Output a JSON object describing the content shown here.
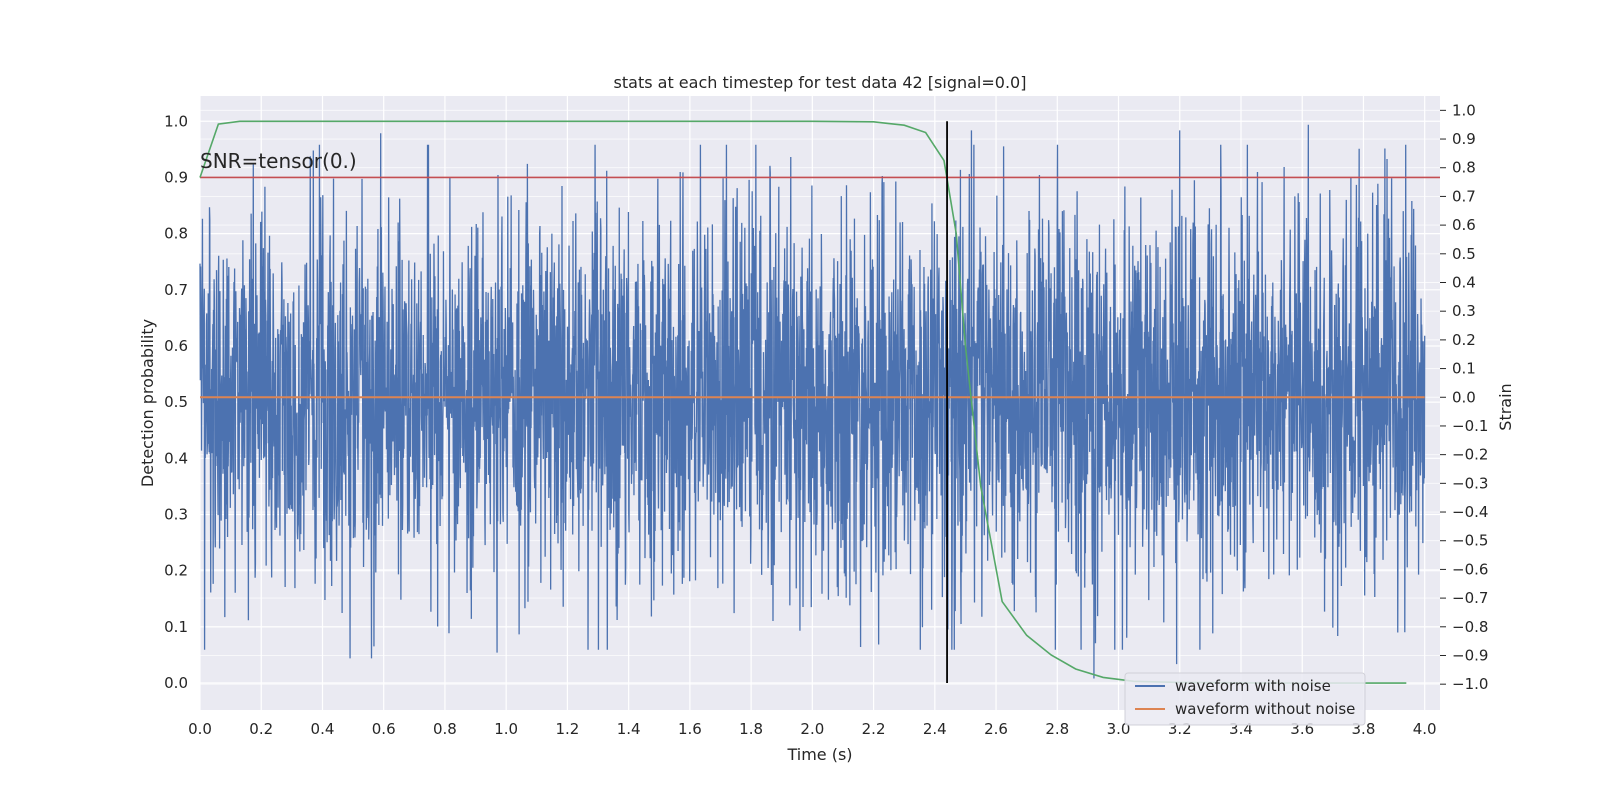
{
  "chart_data": {
    "type": "line",
    "title": "stats at each timestep for test data 42 [signal=0.0]",
    "xlabel": "Time (s)",
    "ylabel": "Detection probability",
    "y2label": "Strain",
    "xlim": [
      0.0,
      4.05
    ],
    "ylim": [
      -0.048,
      1.045
    ],
    "y2lim": [
      -1.09,
      1.05
    ],
    "xticks": [
      "0.0",
      "0.2",
      "0.4",
      "0.6",
      "0.8",
      "1.0",
      "1.2",
      "1.4",
      "1.6",
      "1.8",
      "2.0",
      "2.2",
      "2.4",
      "2.6",
      "2.8",
      "3.0",
      "3.2",
      "3.4",
      "3.6",
      "3.8",
      "4.0"
    ],
    "yticks": [
      "0.0",
      "0.1",
      "0.2",
      "0.3",
      "0.4",
      "0.5",
      "0.6",
      "0.7",
      "0.8",
      "0.9",
      "1.0"
    ],
    "y2ticks": [
      "−1.0",
      "−0.9",
      "−0.8",
      "−0.7",
      "−0.6",
      "−0.5",
      "−0.4",
      "−0.3",
      "−0.2",
      "−0.1",
      "0.0",
      "0.1",
      "0.2",
      "0.3",
      "0.4",
      "0.5",
      "0.6",
      "0.7",
      "0.8",
      "0.9",
      "1.0"
    ],
    "grid": true,
    "legend_placement": "lower-right",
    "annotation": "SNR=tensor(0.)",
    "threshold": 0.9,
    "marker_time": 2.44,
    "colors": {
      "background": "#eaeaf2",
      "noise": "#4c72b0",
      "clean": "#dd8452",
      "probability": "#55a868",
      "threshold": "#c44e52",
      "marker": "#000000"
    },
    "series": [
      {
        "name": "waveform with noise",
        "axis": "right",
        "t_start": 0.0,
        "t_end": 4.0,
        "samples": 4000,
        "distribution": "random noise, std ~0.33, peaks",
        "peaks": [
          {
            "t": 0.59,
            "v": 0.92
          },
          {
            "t": 0.36,
            "v": 0.84
          },
          {
            "t": 2.52,
            "v": 0.93
          },
          {
            "t": 3.2,
            "v": 0.93
          },
          {
            "t": 3.62,
            "v": 0.95
          },
          {
            "t": 0.49,
            "v": -0.91
          },
          {
            "t": 0.56,
            "v": -0.91
          },
          {
            "t": 0.97,
            "v": -0.89
          },
          {
            "t": 2.92,
            "v": -0.98
          },
          {
            "t": 3.19,
            "v": -0.93
          }
        ]
      },
      {
        "name": "waveform without noise",
        "axis": "right",
        "x": [
          0.0,
          4.0
        ],
        "y": [
          0.0,
          0.0
        ]
      },
      {
        "name": "",
        "axis": "left",
        "x": [
          0.0,
          0.06,
          0.13,
          0.3,
          1.0,
          1.5,
          2.0,
          2.2,
          2.3,
          2.37,
          2.43,
          2.47,
          2.5,
          2.55,
          2.62,
          2.7,
          2.78,
          2.86,
          2.95,
          3.05,
          3.2,
          3.5,
          3.94
        ],
        "y": [
          0.9,
          0.995,
          1.0,
          1.0,
          1.0,
          1.0,
          1.0,
          0.999,
          0.993,
          0.98,
          0.93,
          0.8,
          0.6,
          0.35,
          0.145,
          0.085,
          0.05,
          0.025,
          0.01,
          0.003,
          0.001,
          0.0,
          0.0
        ]
      }
    ]
  }
}
